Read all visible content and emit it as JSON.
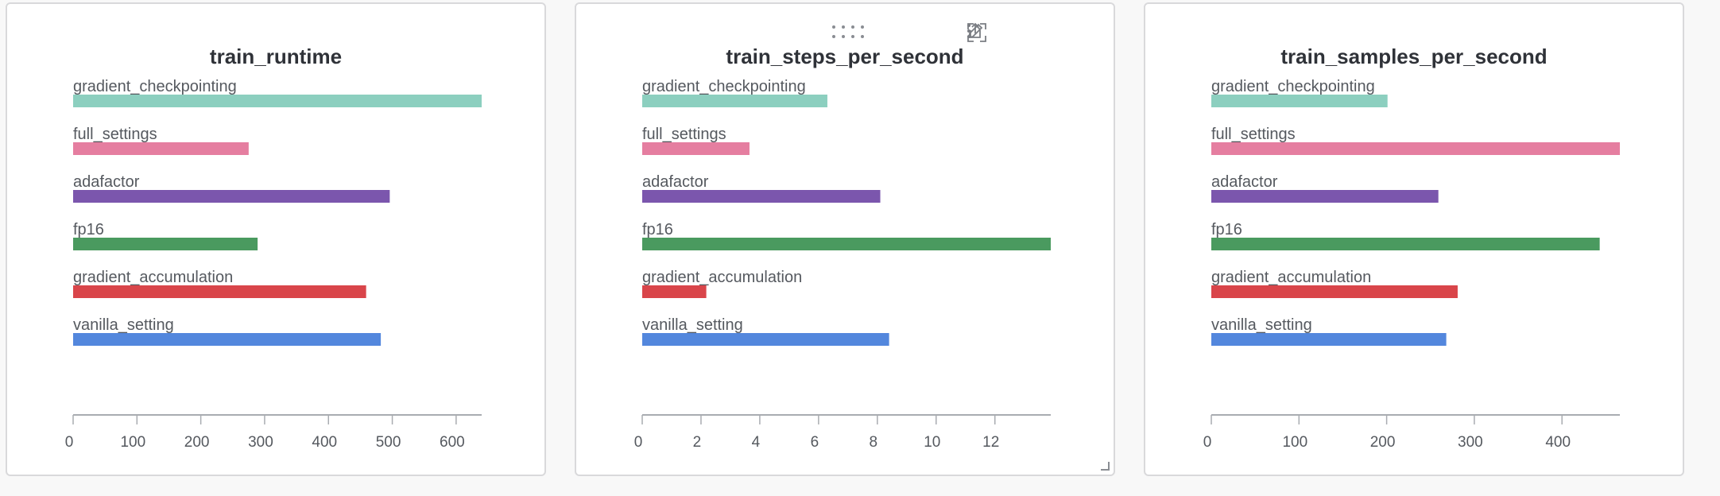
{
  "colors": {
    "gradient_checkpointing": "#8ccfbf",
    "full_settings": "#e57ea0",
    "adafactor": "#7b56ad",
    "fp16": "#4a9a5f",
    "gradient_accumulation": "#d9454a",
    "vanilla_setting": "#5387dd"
  },
  "toolbar": {
    "share_icon": "share-icon",
    "edit_icon": "pencil-icon",
    "fullscreen_icon": "fullscreen-icon",
    "more_icon": "kebab-menu-icon",
    "drag_icon": "drag-handle-icon",
    "resize_icon": "resize-corner-icon"
  },
  "chart_data": [
    {
      "type": "bar",
      "orientation": "horizontal",
      "title": "train_runtime",
      "categories": [
        "gradient_checkpointing",
        "full_settings",
        "adafactor",
        "fp16",
        "gradient_accumulation",
        "vanilla_setting"
      ],
      "values": [
        640,
        275,
        496,
        289,
        459,
        482
      ],
      "xlim": [
        0,
        640
      ],
      "xticks": [
        0,
        100,
        200,
        300,
        400,
        500,
        600
      ],
      "xlabel": "",
      "ylabel": ""
    },
    {
      "type": "bar",
      "orientation": "horizontal",
      "title": "train_steps_per_second",
      "categories": [
        "gradient_checkpointing",
        "full_settings",
        "adafactor",
        "fp16",
        "gradient_accumulation",
        "vanilla_setting"
      ],
      "values": [
        6.3,
        3.65,
        8.1,
        13.9,
        2.18,
        8.4
      ],
      "xlim": [
        0,
        13.9
      ],
      "xticks": [
        0,
        2,
        4,
        6,
        8,
        10,
        12
      ],
      "xlabel": "",
      "ylabel": ""
    },
    {
      "type": "bar",
      "orientation": "horizontal",
      "title": "train_samples_per_second",
      "categories": [
        "gradient_checkpointing",
        "full_settings",
        "adafactor",
        "fp16",
        "gradient_accumulation",
        "vanilla_setting"
      ],
      "values": [
        201,
        466,
        259,
        443,
        281,
        268
      ],
      "xlim": [
        0,
        466
      ],
      "xticks": [
        0,
        100,
        200,
        300,
        400
      ],
      "xlabel": "",
      "ylabel": ""
    }
  ]
}
